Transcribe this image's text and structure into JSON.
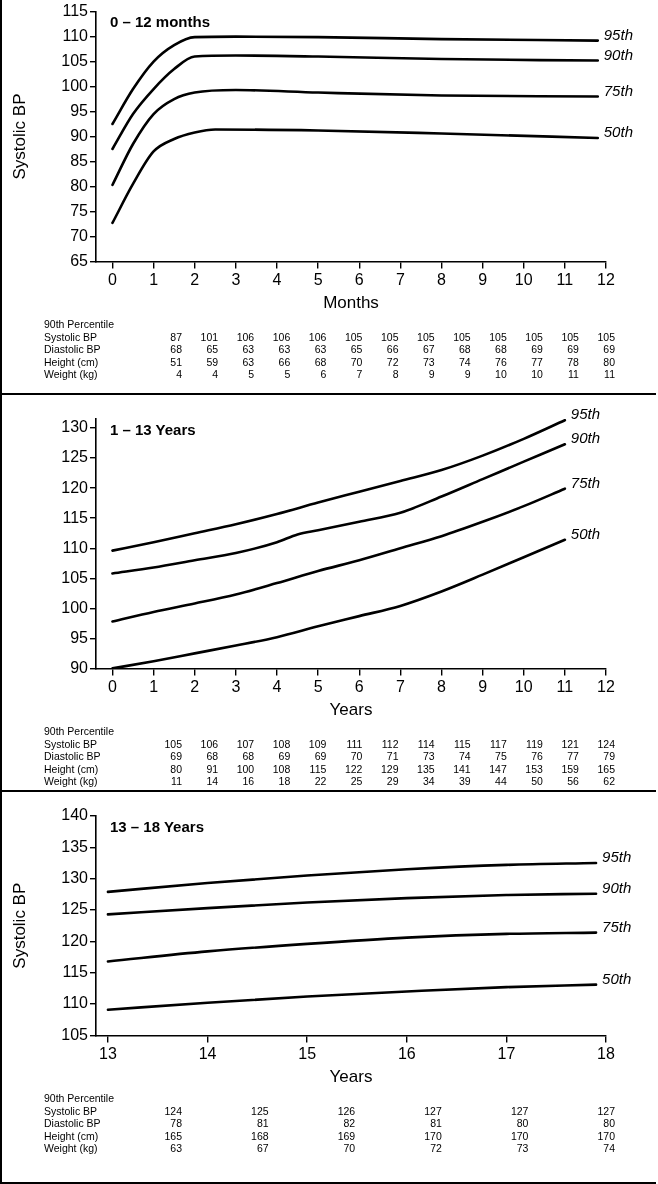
{
  "chart_data": [
    {
      "type": "line",
      "title": "0 – 12 months",
      "xlabel": "Months",
      "ylabel": "Systolic BP",
      "xlim": [
        -0.4,
        12
      ],
      "xticks": [
        0,
        1,
        2,
        3,
        4,
        5,
        6,
        7,
        8,
        9,
        10,
        11,
        12
      ],
      "ylim": [
        65,
        115
      ],
      "yticks": [
        65,
        70,
        75,
        80,
        85,
        90,
        95,
        100,
        105,
        110,
        115
      ],
      "grid": false,
      "legend": false,
      "marker": "none",
      "line_style": "solid",
      "series": [
        {
          "name": "95th",
          "color": "#000000",
          "x": [
            0,
            0.5,
            1,
            1.5,
            2,
            3,
            5,
            8,
            11.8
          ],
          "values": [
            92.5,
            99.5,
            105,
            108.3,
            109.9,
            110,
            109.9,
            109.5,
            109.2
          ]
        },
        {
          "name": "90th",
          "color": "#000000",
          "x": [
            0,
            0.5,
            1,
            1.5,
            2,
            3,
            5,
            8,
            11.8
          ],
          "values": [
            87.5,
            94.5,
            99.5,
            103.5,
            106,
            106.2,
            106,
            105.5,
            105.2
          ]
        },
        {
          "name": "75th",
          "color": "#000000",
          "x": [
            0,
            0.5,
            1,
            1.5,
            2,
            3,
            5,
            8,
            11.8
          ],
          "values": [
            80.3,
            88.5,
            94.5,
            97.5,
            98.8,
            99.3,
            98.8,
            98.2,
            98
          ]
        },
        {
          "name": "50th",
          "color": "#000000",
          "x": [
            0,
            0.5,
            1,
            1.5,
            2,
            2.5,
            5,
            8,
            11.8
          ],
          "values": [
            72.7,
            80.5,
            87,
            89.5,
            90.8,
            91.4,
            91.2,
            90.6,
            89.7
          ]
        }
      ],
      "annotations": [
        "90th Percentile",
        "Systolic BP\t87\t101\t106\t106\t106\t105\t105\t105\t105\t105\t105\t105\t105",
        "Diastolic BP\t68\t65\t63\t63\t63\t65\t66\t67\t68\t68\t69\t69\t69",
        "Height (cm)\t51\t59\t63\t66\t68\t70\t72\t73\t74\t76\t77\t78\t80",
        "Weight (kg)\t4\t4\t5\t5\t6\t7\t8\t9\t9\t10\t10\t11\t11"
      ]
    },
    {
      "type": "line",
      "title": "1 – 13 Years",
      "xlabel": "Years",
      "xlim": [
        -0.4,
        12
      ],
      "xticks": [
        0,
        1,
        2,
        3,
        4,
        5,
        6,
        7,
        8,
        9,
        10,
        11,
        12
      ],
      "ylim": [
        90,
        131.5
      ],
      "yticks": [
        90,
        95,
        100,
        105,
        110,
        115,
        120,
        125,
        130
      ],
      "grid": false,
      "legend": false,
      "marker": "none",
      "line_style": "solid",
      "series": [
        {
          "name": "95th",
          "color": "#000000",
          "x": [
            0,
            1,
            2,
            3,
            4,
            5,
            6,
            7,
            8,
            9,
            10,
            11
          ],
          "values": [
            109.6,
            111,
            112.5,
            114,
            115.7,
            117.6,
            119.4,
            121.2,
            123,
            125.4,
            128.2,
            131.3
          ]
        },
        {
          "name": "90th",
          "color": "#000000",
          "x": [
            0,
            1,
            2,
            3,
            4,
            4.5,
            5,
            6,
            7,
            8,
            9,
            10,
            11
          ],
          "values": [
            105.8,
            106.8,
            108,
            109.2,
            111,
            112.3,
            113,
            114.4,
            115.9,
            118.6,
            121.5,
            124.4,
            127.3
          ]
        },
        {
          "name": "75th",
          "color": "#000000",
          "x": [
            0,
            1,
            2,
            3,
            4,
            5,
            6,
            7,
            8,
            9,
            10,
            11
          ],
          "values": [
            97.8,
            99.4,
            100.8,
            102.3,
            104.2,
            106.2,
            108,
            110,
            112,
            114.4,
            117,
            119.9
          ]
        },
        {
          "name": "50th",
          "color": "#000000",
          "x": [
            0,
            1,
            2,
            3,
            4,
            5,
            6,
            7,
            8,
            9,
            10,
            11
          ],
          "values": [
            90,
            91.2,
            92.5,
            93.8,
            95.2,
            97,
            98.7,
            100.4,
            102.8,
            105.6,
            108.5,
            111.4
          ]
        }
      ],
      "annotations": [
        "90th Percentile",
        "Systolic BP\t105\t106\t107\t108\t109\t111\t112\t114\t115\t117\t119\t121\t124",
        "Diastolic BP\t69\t68\t68\t69\t69\t70\t71\t73\t74\t75\t76\t77\t79",
        "Height (cm)\t80\t91\t100\t108\t115\t122\t129\t135\t141\t147\t153\t159\t165",
        "Weight (kg)\t11\t14\t16\t18\t22\t25\t29\t34\t39\t44\t50\t56\t62"
      ]
    },
    {
      "type": "line",
      "title": "13 – 18 Years",
      "xlabel": "Years",
      "ylabel": "Systolic BP",
      "xlim": [
        12.88,
        18
      ],
      "xticks": [
        13,
        14,
        15,
        16,
        17,
        18
      ],
      "ylim": [
        105,
        140
      ],
      "yticks": [
        105,
        110,
        115,
        120,
        125,
        130,
        135,
        140
      ],
      "grid": false,
      "legend": false,
      "marker": "none",
      "line_style": "solid",
      "series": [
        {
          "name": "95th",
          "color": "#000000",
          "x": [
            13,
            14,
            15,
            16,
            17,
            17.9
          ],
          "values": [
            127.9,
            129.3,
            130.5,
            131.5,
            132.2,
            132.5
          ]
        },
        {
          "name": "90th",
          "color": "#000000",
          "x": [
            13,
            14,
            15,
            16,
            17,
            17.9
          ],
          "values": [
            124.3,
            125.3,
            126.2,
            126.9,
            127.4,
            127.6
          ]
        },
        {
          "name": "75th",
          "color": "#000000",
          "x": [
            13,
            14,
            15,
            16,
            17,
            17.9
          ],
          "values": [
            116.8,
            118.4,
            119.6,
            120.6,
            121.2,
            121.4
          ]
        },
        {
          "name": "50th",
          "color": "#000000",
          "x": [
            13,
            14,
            15,
            16,
            17,
            17.9
          ],
          "values": [
            109.1,
            110.2,
            111.2,
            112,
            112.7,
            113.1
          ]
        }
      ],
      "annotations": [
        "90th Percentile",
        "Systolic BP\t124\t125\t126\t127\t127\t127",
        "Diastolic BP\t78\t81\t82\t81\t80\t80",
        "Height (cm)\t165\t168\t169\t170\t170\t170",
        "Weight (kg)\t63\t67\t70\t72\t73\t74"
      ]
    }
  ]
}
